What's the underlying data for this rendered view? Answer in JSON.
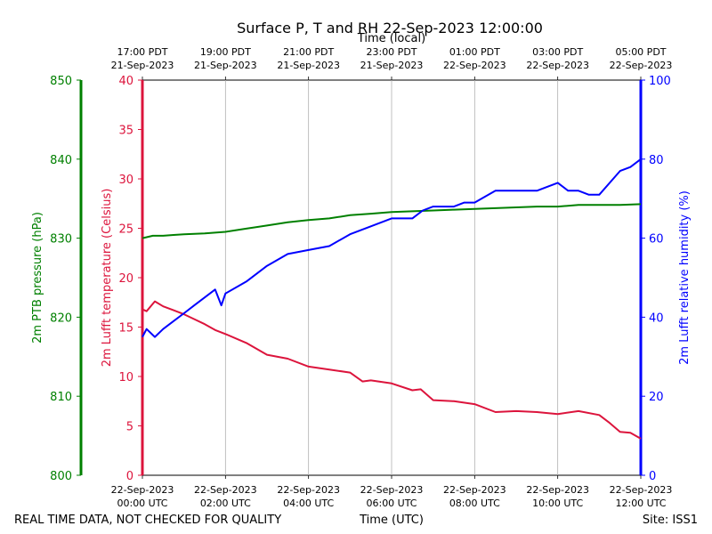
{
  "chart_data": {
    "type": "line",
    "title": "Surface P, T and RH 22-Sep-2023 12:00:00",
    "top_axis_label": "Time (local)",
    "bottom_axis_label": "Time (UTC)",
    "footer_left": "REAL TIME DATA, NOT CHECKED FOR QUALITY",
    "footer_right": "Site: ISS1",
    "x_range_hours_utc": [
      0,
      12
    ],
    "top_ticks": [
      {
        "line1": "17:00 PDT",
        "line2": "21-Sep-2023"
      },
      {
        "line1": "19:00 PDT",
        "line2": "21-Sep-2023"
      },
      {
        "line1": "21:00 PDT",
        "line2": "21-Sep-2023"
      },
      {
        "line1": "23:00 PDT",
        "line2": "21-Sep-2023"
      },
      {
        "line1": "01:00 PDT",
        "line2": "22-Sep-2023"
      },
      {
        "line1": "03:00 PDT",
        "line2": "22-Sep-2023"
      },
      {
        "line1": "05:00 PDT",
        "line2": "22-Sep-2023"
      }
    ],
    "bottom_ticks": [
      {
        "line1": "22-Sep-2023",
        "line2": "00:00 UTC"
      },
      {
        "line1": "22-Sep-2023",
        "line2": "02:00 UTC"
      },
      {
        "line1": "22-Sep-2023",
        "line2": "04:00 UTC"
      },
      {
        "line1": "22-Sep-2023",
        "line2": "06:00 UTC"
      },
      {
        "line1": "22-Sep-2023",
        "line2": "08:00 UTC"
      },
      {
        "line1": "22-Sep-2023",
        "line2": "10:00 UTC"
      },
      {
        "line1": "22-Sep-2023",
        "line2": "12:00 UTC"
      }
    ],
    "grid": "vertical",
    "axes": {
      "pressure": {
        "label": "2m PTB pressure (hPa)",
        "ylim": [
          800,
          850
        ],
        "ticks": [
          "800",
          "810",
          "820",
          "830",
          "840",
          "850"
        ],
        "color": "#008000"
      },
      "temperature": {
        "label": "2m Lufft temperature (Celsius)",
        "ylim": [
          0,
          40
        ],
        "ticks": [
          "0",
          "5",
          "10",
          "15",
          "20",
          "25",
          "30",
          "35",
          "40"
        ],
        "color": "#dc143c"
      },
      "humidity": {
        "label": "2m Lufft relative humidity (%)",
        "ylim": [
          0,
          100
        ],
        "ticks": [
          "0",
          "20",
          "40",
          "60",
          "80",
          "100"
        ],
        "color": "#0000ff"
      }
    },
    "series": [
      {
        "axis": "pressure",
        "color": "#008000",
        "x": [
          0,
          0.25,
          0.5,
          0.75,
          1,
          1.5,
          2,
          2.5,
          3,
          3.5,
          4,
          4.5,
          5,
          5.5,
          6,
          6.5,
          7,
          7.5,
          8,
          8.5,
          9,
          9.5,
          10,
          10.5,
          11,
          11.5,
          12
        ],
        "values": [
          830.0,
          830.3,
          830.3,
          830.4,
          830.5,
          830.6,
          830.8,
          831.2,
          831.6,
          832.0,
          832.3,
          832.5,
          832.9,
          833.1,
          833.3,
          833.4,
          833.5,
          833.6,
          833.7,
          833.8,
          833.9,
          834.0,
          834.0,
          834.2,
          834.2,
          834.2,
          834.3
        ]
      },
      {
        "axis": "temperature",
        "color": "#dc143c",
        "x": [
          0,
          0.1,
          0.3,
          0.5,
          0.75,
          1,
          1.25,
          1.5,
          1.75,
          2,
          2.5,
          3,
          3.5,
          4,
          4.5,
          5,
          5.3,
          5.5,
          6,
          6.5,
          6.7,
          7,
          7.5,
          8,
          8.5,
          9,
          9.5,
          10,
          10.5,
          11,
          11.25,
          11.5,
          11.75,
          12
        ],
        "values": [
          16.8,
          16.6,
          17.6,
          17.1,
          16.7,
          16.3,
          15.8,
          15.3,
          14.7,
          14.3,
          13.4,
          12.2,
          11.8,
          11.0,
          10.7,
          10.4,
          9.5,
          9.6,
          9.3,
          8.6,
          8.7,
          7.6,
          7.5,
          7.2,
          6.4,
          6.5,
          6.4,
          6.2,
          6.5,
          6.1,
          5.3,
          4.4,
          4.3,
          3.7
        ]
      },
      {
        "axis": "humidity",
        "color": "#0000ff",
        "x": [
          0,
          0.1,
          0.3,
          0.5,
          0.75,
          1,
          1.25,
          1.5,
          1.75,
          1.9,
          2,
          2.5,
          3,
          3.5,
          4,
          4.5,
          5,
          5.5,
          6,
          6.5,
          6.75,
          7,
          7.5,
          7.75,
          8,
          8.5,
          9,
          9.5,
          10,
          10.25,
          10.5,
          10.75,
          11,
          11.5,
          11.75,
          12
        ],
        "values": [
          35,
          37,
          35,
          37,
          39,
          41,
          43,
          45,
          47,
          43,
          46,
          49,
          53,
          56,
          57,
          58,
          61,
          63,
          65,
          65,
          67,
          68,
          68,
          69,
          69,
          72,
          72,
          72,
          74,
          72,
          72,
          71,
          71,
          77,
          78,
          80
        ]
      }
    ]
  }
}
